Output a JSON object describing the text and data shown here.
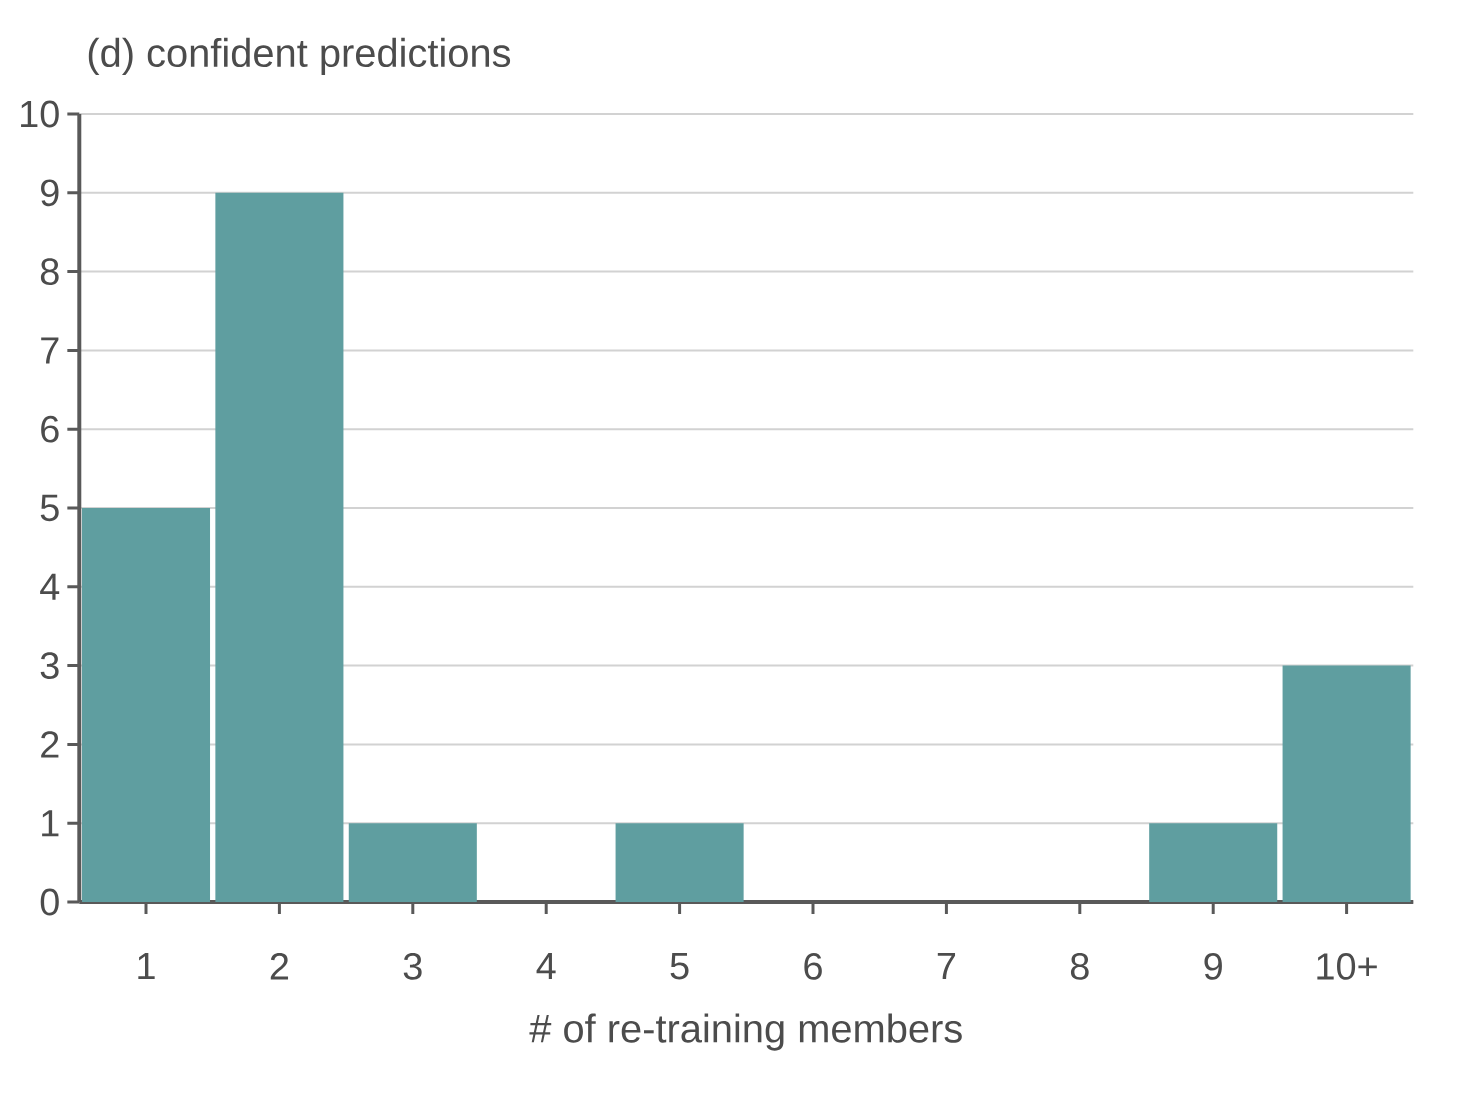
{
  "chart_data": {
    "type": "bar",
    "title": "(d) confident predictions",
    "xlabel": "# of re-training members",
    "categories": [
      "1",
      "2",
      "3",
      "4",
      "5",
      "6",
      "7",
      "8",
      "9",
      "10+"
    ],
    "values": [
      5,
      9,
      1,
      0,
      1,
      0,
      0,
      0,
      1,
      3
    ],
    "color": "#5f9ea0",
    "ylim": [
      0,
      10
    ],
    "yticks": [
      0,
      1,
      2,
      3,
      4,
      5,
      6,
      7,
      8,
      9,
      10
    ],
    "grid": "y"
  }
}
